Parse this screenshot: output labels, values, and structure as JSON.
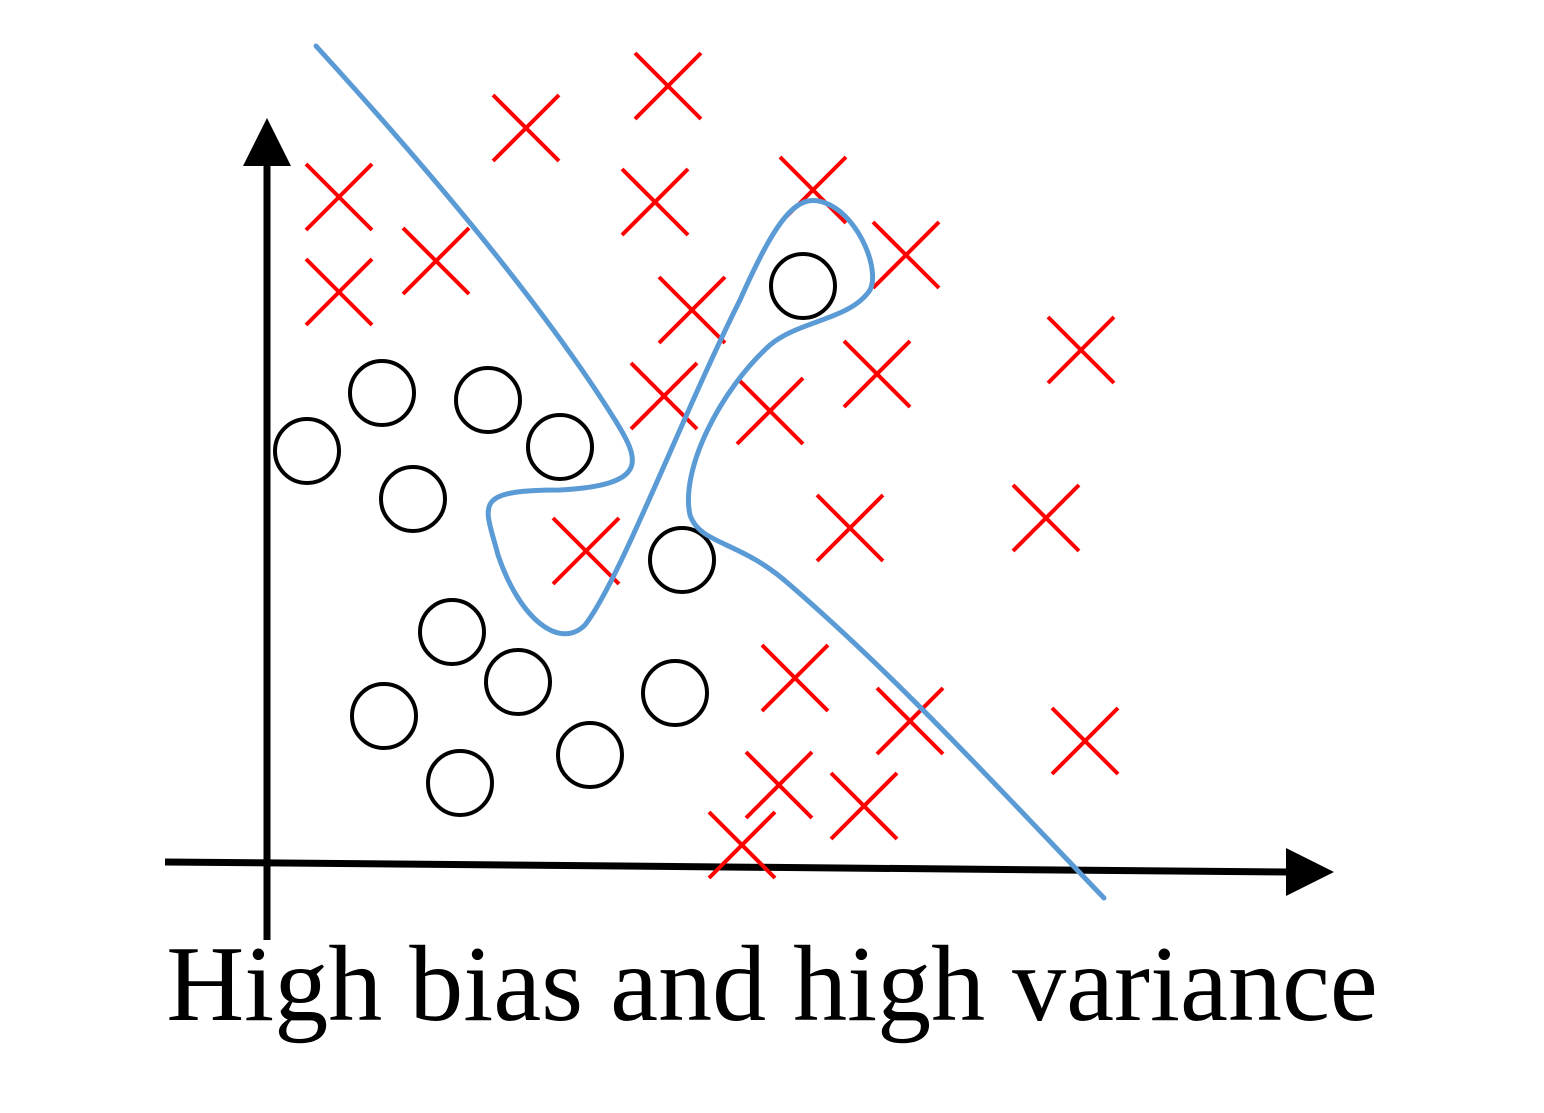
{
  "caption": "High bias and high variance",
  "colors": {
    "axis": "#000000",
    "cross": "#ff0000",
    "circle": "#000000",
    "boundary": "#5b9bd5",
    "background": "#ffffff"
  },
  "markers": {
    "class_x_icon": "red-cross-icon",
    "class_o_icon": "black-circle-icon"
  }
}
